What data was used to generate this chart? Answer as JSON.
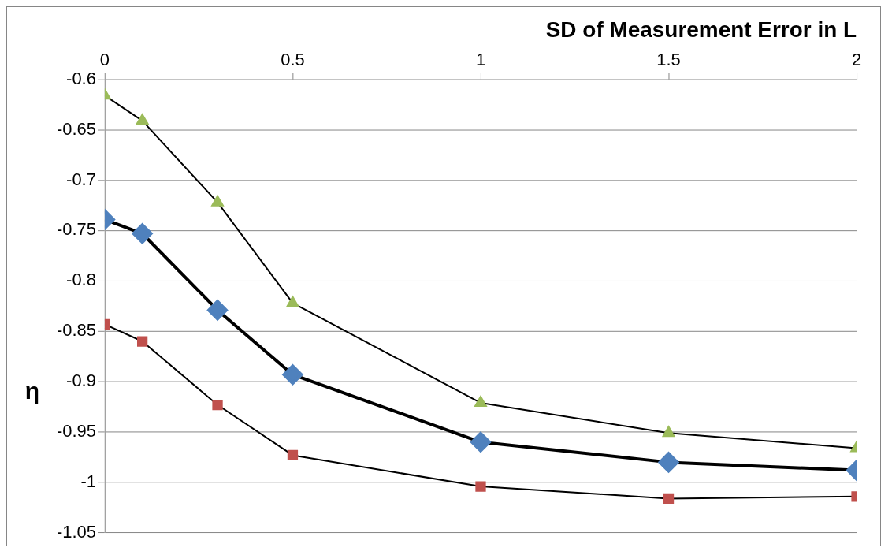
{
  "chart_data": {
    "type": "line",
    "xlabel": "SD of Measurement Error in L",
    "ylabel": "η",
    "x": [
      0,
      0.1,
      0.3,
      0.5,
      1,
      1.5,
      2
    ],
    "series": [
      {
        "color": "#9bbb59",
        "marker": "triangle",
        "values": [
          -0.616,
          -0.641,
          -0.722,
          -0.822,
          -0.921,
          -0.951,
          -0.966
        ]
      },
      {
        "color": "#4f81bd",
        "marker": "diamond",
        "values": [
          -0.739,
          -0.753,
          -0.829,
          -0.893,
          -0.96,
          -0.98,
          -0.988
        ]
      },
      {
        "color": "#c0504d",
        "marker": "square",
        "values": [
          -0.843,
          -0.86,
          -0.923,
          -0.973,
          -1.004,
          -1.016,
          -1.014
        ]
      }
    ],
    "xlim": [
      0,
      2
    ],
    "xticks": [
      0,
      0.5,
      1,
      1.5,
      2
    ],
    "ylim": [
      -1.05,
      -0.6
    ],
    "yticks": [
      -1.05,
      -1,
      -0.95,
      -0.9,
      -0.85,
      -0.8,
      -0.75,
      -0.7,
      -0.65,
      -0.6
    ],
    "grid": "y",
    "legend": false
  }
}
